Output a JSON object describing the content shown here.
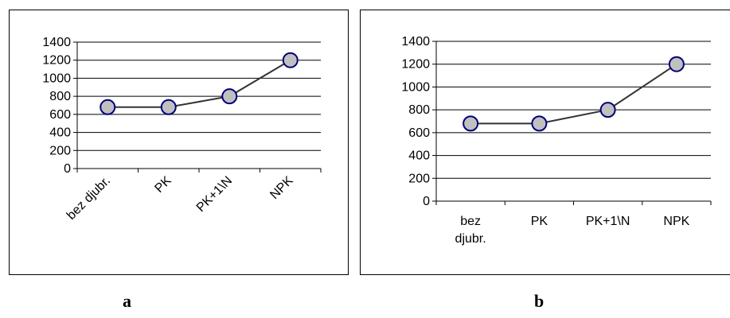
{
  "captions": {
    "a": "a",
    "b": "b"
  },
  "chart_data": [
    {
      "type": "line",
      "panel": "a",
      "categories": [
        "bez djubr.",
        "PK",
        "PK+1\\N",
        "NPK"
      ],
      "category_label_orientation": "rotated",
      "values": [
        680,
        680,
        800,
        1200
      ],
      "yticks": [
        0,
        200,
        400,
        600,
        800,
        1000,
        1200,
        1400
      ],
      "ylim": [
        0,
        1400
      ],
      "grid": true,
      "legend": "none",
      "colors": {
        "line": "#333333",
        "marker_fill": "#c0c0c0",
        "marker_stroke": "#00007a",
        "grid": "#000000"
      }
    },
    {
      "type": "line",
      "panel": "b",
      "categories": [
        "bez djubr.",
        "PK",
        "PK+1\\N",
        "NPK"
      ],
      "category_label_orientation": "horizontal",
      "values": [
        680,
        680,
        800,
        1200
      ],
      "yticks": [
        0,
        200,
        400,
        600,
        800,
        1000,
        1200,
        1400
      ],
      "ylim": [
        0,
        1400
      ],
      "grid": true,
      "legend": "none",
      "colors": {
        "line": "#333333",
        "marker_fill": "#c0c0c0",
        "marker_stroke": "#00007a",
        "grid": "#000000"
      }
    }
  ]
}
